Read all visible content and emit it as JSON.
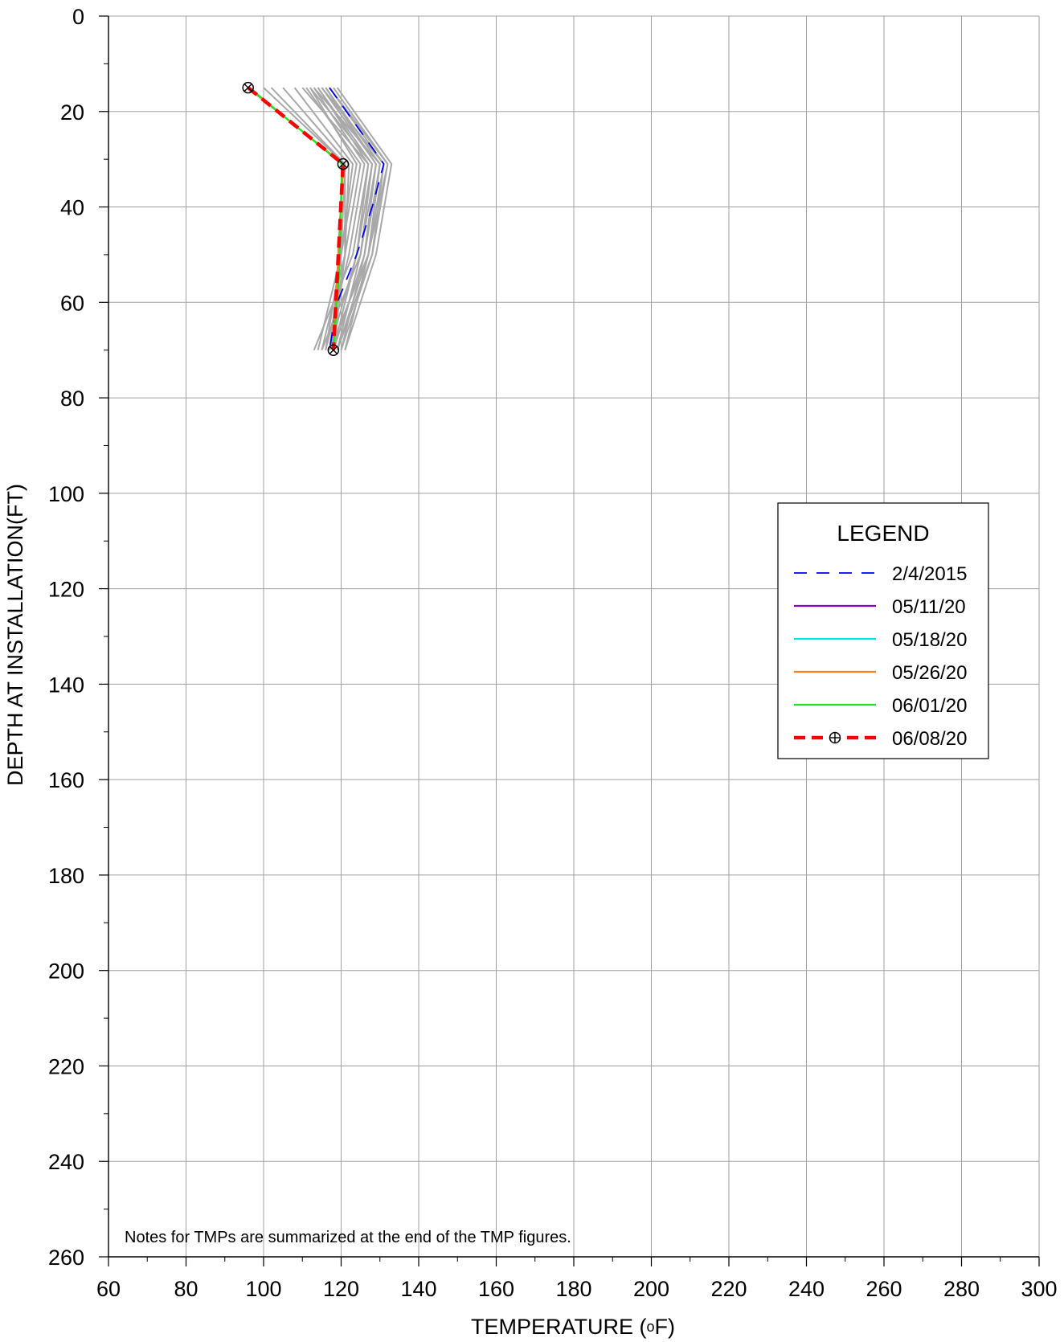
{
  "chart_data": {
    "type": "line",
    "title": "",
    "xlabel": "TEMPERATURE (",
    "xlabel_unit_super": "o",
    "xlabel_unit_tail": "F)",
    "ylabel": "DEPTH AT INSTALLATION(FT)",
    "xlim": [
      60,
      300
    ],
    "ylim": [
      0,
      260
    ],
    "y_inverted": true,
    "x_ticks": [
      60,
      80,
      100,
      120,
      140,
      160,
      180,
      200,
      220,
      240,
      260,
      280,
      300
    ],
    "y_ticks": [
      0,
      20,
      40,
      60,
      80,
      100,
      120,
      140,
      160,
      180,
      200,
      220,
      240,
      260
    ],
    "grid": true,
    "note": "Notes for TMPs are summarized at the end of the TMP figures.",
    "legend": {
      "title": "LEGEND",
      "position": "right",
      "entries": [
        {
          "label": "2/4/2015",
          "color": "#0000ff",
          "style": "dashed",
          "marker": "none"
        },
        {
          "label": "05/11/20",
          "color": "#8b00c8",
          "style": "solid",
          "marker": "none"
        },
        {
          "label": "05/18/20",
          "color": "#00e6e6",
          "style": "solid",
          "marker": "none"
        },
        {
          "label": "05/26/20",
          "color": "#ff7f1e",
          "style": "solid",
          "marker": "none"
        },
        {
          "label": "06/01/20",
          "color": "#1ee61e",
          "style": "solid",
          "marker": "none"
        },
        {
          "label": "06/08/20",
          "color": "#ff0000",
          "style": "dashed-thick",
          "marker": "circle-cross"
        }
      ]
    },
    "background_series": {
      "color": "#a8a8a8",
      "description_hidden": true,
      "curves": [
        [
          [
            112,
            15
          ],
          [
            124,
            31
          ],
          [
            120,
            50
          ],
          [
            114,
            70
          ]
        ],
        [
          [
            113,
            15
          ],
          [
            126,
            31
          ],
          [
            122,
            50
          ],
          [
            116,
            70
          ]
        ],
        [
          [
            110,
            15
          ],
          [
            127,
            31
          ],
          [
            124,
            50
          ],
          [
            118,
            70
          ]
        ],
        [
          [
            114,
            15
          ],
          [
            128,
            31
          ],
          [
            125,
            50
          ],
          [
            119,
            70
          ]
        ],
        [
          [
            115,
            15
          ],
          [
            129,
            31
          ],
          [
            126,
            50
          ],
          [
            120,
            70
          ]
        ],
        [
          [
            116,
            15
          ],
          [
            130,
            31
          ],
          [
            127,
            50
          ],
          [
            121,
            70
          ]
        ],
        [
          [
            117,
            15
          ],
          [
            131,
            31
          ],
          [
            128,
            50
          ],
          [
            120,
            70
          ]
        ],
        [
          [
            118,
            15
          ],
          [
            132,
            31
          ],
          [
            128,
            50
          ],
          [
            119,
            70
          ]
        ],
        [
          [
            119,
            15
          ],
          [
            133,
            31
          ],
          [
            129,
            50
          ],
          [
            121,
            70
          ]
        ],
        [
          [
            115,
            15
          ],
          [
            131,
            31
          ],
          [
            127,
            50
          ],
          [
            117,
            70
          ]
        ],
        [
          [
            111,
            15
          ],
          [
            125,
            31
          ],
          [
            121,
            50
          ],
          [
            115,
            70
          ]
        ],
        [
          [
            108,
            15
          ],
          [
            123,
            31
          ],
          [
            120,
            50
          ],
          [
            116,
            70
          ]
        ],
        [
          [
            105,
            15
          ],
          [
            122,
            31
          ],
          [
            121,
            50
          ],
          [
            117,
            70
          ]
        ],
        [
          [
            100,
            15
          ],
          [
            121,
            31
          ],
          [
            120,
            50
          ],
          [
            117,
            70
          ]
        ],
        [
          [
            102,
            15
          ],
          [
            121,
            31
          ],
          [
            121,
            50
          ],
          [
            118,
            70
          ]
        ],
        [
          [
            114,
            15
          ],
          [
            127,
            31
          ],
          [
            123,
            50
          ],
          [
            113,
            70
          ]
        ],
        [
          [
            116,
            15
          ],
          [
            129,
            31
          ],
          [
            125,
            50
          ],
          [
            115,
            70
          ]
        ],
        [
          [
            113,
            15
          ],
          [
            130,
            31
          ],
          [
            126,
            50
          ],
          [
            118,
            70
          ]
        ],
        [
          [
            117,
            15
          ],
          [
            132,
            31
          ],
          [
            127,
            50
          ],
          [
            119,
            70
          ]
        ],
        [
          [
            112,
            15
          ],
          [
            128,
            31
          ],
          [
            124,
            50
          ],
          [
            117,
            70
          ]
        ]
      ]
    },
    "series": [
      {
        "name": "2/4/2015",
        "color": "#0000ff",
        "style": "dashed",
        "points": [
          [
            117,
            15
          ],
          [
            131,
            31
          ],
          [
            128,
            40
          ],
          [
            124,
            50
          ],
          [
            119,
            60
          ],
          [
            117,
            70
          ]
        ]
      },
      {
        "name": "05/11/20",
        "color": "#8b00c8",
        "style": "solid",
        "points": [
          [
            96,
            15
          ],
          [
            120.5,
            31
          ],
          [
            118,
            70
          ]
        ]
      },
      {
        "name": "05/18/20",
        "color": "#00e6e6",
        "style": "solid",
        "points": [
          [
            96,
            15
          ],
          [
            120.5,
            31
          ],
          [
            118,
            70
          ]
        ]
      },
      {
        "name": "05/26/20",
        "color": "#ff7f1e",
        "style": "solid",
        "points": [
          [
            96,
            15
          ],
          [
            120.5,
            31
          ],
          [
            118,
            70
          ]
        ]
      },
      {
        "name": "06/01/20",
        "color": "#1ee61e",
        "style": "solid",
        "points": [
          [
            96.3,
            15
          ],
          [
            120.2,
            31
          ],
          [
            119.5,
            54
          ],
          [
            118,
            70
          ]
        ]
      },
      {
        "name": "06/08/20",
        "color": "#ff0000",
        "style": "dashed-thick",
        "marker": "circle-cross",
        "points": [
          [
            96,
            15
          ],
          [
            120.5,
            31
          ],
          [
            118,
            70
          ]
        ]
      }
    ]
  }
}
